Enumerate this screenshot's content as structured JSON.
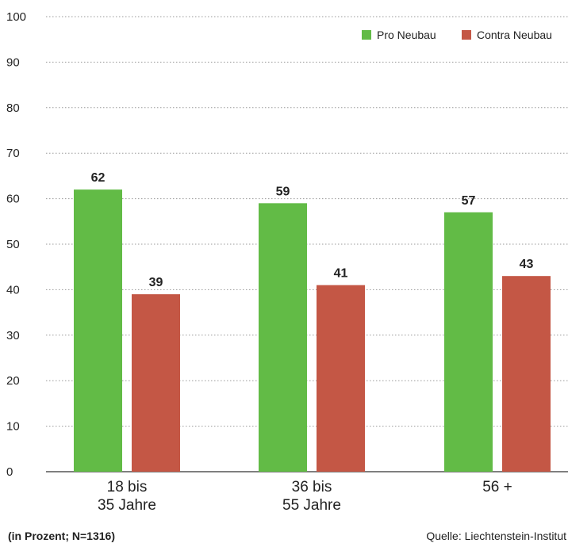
{
  "chart_data": {
    "type": "bar",
    "categories": [
      [
        "18 bis",
        "35 Jahre"
      ],
      [
        "36 bis",
        "55 Jahre"
      ],
      [
        "56 +"
      ]
    ],
    "series": [
      {
        "name": "Pro Neubau",
        "values": [
          62,
          59,
          57
        ],
        "color": "#62bb46"
      },
      {
        "name": "Contra Neubau",
        "values": [
          39,
          41,
          43
        ],
        "color": "#c45745"
      }
    ],
    "yticks": [
      0,
      10,
      20,
      30,
      40,
      50,
      60,
      70,
      80,
      90,
      100
    ],
    "ylim": [
      0,
      100
    ],
    "grid": true,
    "legend_position": "top-right"
  },
  "footer": {
    "note": "(in Prozent; N=1316)",
    "source": "Quelle: Liechtenstein-Institut"
  }
}
